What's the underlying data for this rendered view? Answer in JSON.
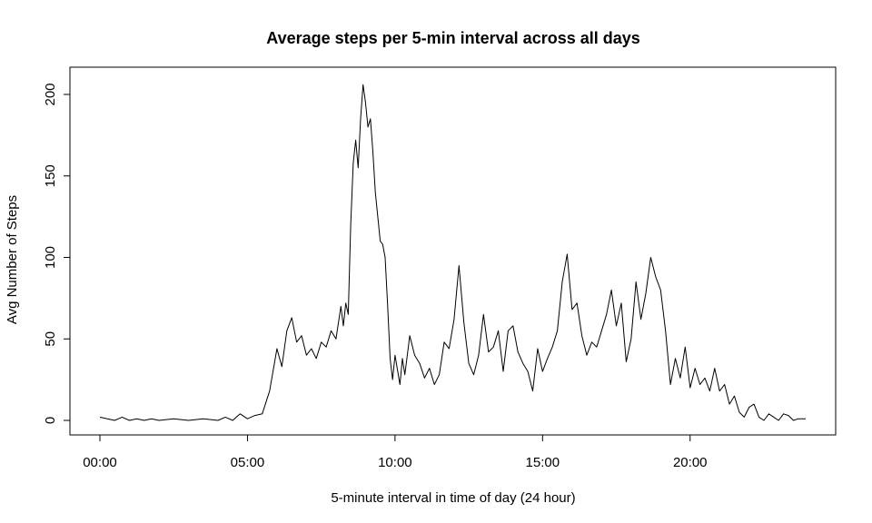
{
  "chart_data": {
    "type": "line",
    "title": "Average steps per 5-min interval across all days",
    "xlabel": "5-minute interval in time of day (24 hour)",
    "ylabel": "Avg Number of Steps",
    "x_unit": "time of day (HH:MM)",
    "xlim": [
      "00:00",
      "23:55"
    ],
    "ylim": [
      0,
      206
    ],
    "x_ticks": [
      "00:00",
      "05:00",
      "10:00",
      "15:00",
      "20:00"
    ],
    "y_ticks": [
      "0",
      "50",
      "100",
      "150",
      "200"
    ],
    "grid": false,
    "legend": "none",
    "series": [
      {
        "color": "#000000",
        "points": [
          [
            "00:00",
            2
          ],
          [
            "00:15",
            1
          ],
          [
            "00:30",
            0
          ],
          [
            "00:45",
            2
          ],
          [
            "01:00",
            0
          ],
          [
            "01:15",
            1
          ],
          [
            "01:30",
            0
          ],
          [
            "01:45",
            1
          ],
          [
            "02:00",
            0
          ],
          [
            "02:30",
            1
          ],
          [
            "03:00",
            0
          ],
          [
            "03:30",
            1
          ],
          [
            "04:00",
            0
          ],
          [
            "04:15",
            2
          ],
          [
            "04:30",
            0
          ],
          [
            "04:45",
            4
          ],
          [
            "05:00",
            1
          ],
          [
            "05:15",
            3
          ],
          [
            "05:30",
            4
          ],
          [
            "05:45",
            18
          ],
          [
            "06:00",
            44
          ],
          [
            "06:10",
            33
          ],
          [
            "06:20",
            55
          ],
          [
            "06:30",
            63
          ],
          [
            "06:40",
            48
          ],
          [
            "06:50",
            52
          ],
          [
            "07:00",
            40
          ],
          [
            "07:10",
            44
          ],
          [
            "07:20",
            38
          ],
          [
            "07:30",
            48
          ],
          [
            "07:40",
            45
          ],
          [
            "07:50",
            55
          ],
          [
            "08:00",
            50
          ],
          [
            "08:10",
            70
          ],
          [
            "08:15",
            58
          ],
          [
            "08:20",
            72
          ],
          [
            "08:25",
            65
          ],
          [
            "08:30",
            120
          ],
          [
            "08:35",
            158
          ],
          [
            "08:40",
            172
          ],
          [
            "08:45",
            155
          ],
          [
            "08:50",
            185
          ],
          [
            "08:55",
            206
          ],
          [
            "09:00",
            195
          ],
          [
            "09:05",
            180
          ],
          [
            "09:10",
            185
          ],
          [
            "09:15",
            165
          ],
          [
            "09:20",
            140
          ],
          [
            "09:25",
            125
          ],
          [
            "09:30",
            110
          ],
          [
            "09:35",
            108
          ],
          [
            "09:40",
            100
          ],
          [
            "09:45",
            70
          ],
          [
            "09:50",
            38
          ],
          [
            "09:55",
            25
          ],
          [
            "10:00",
            40
          ],
          [
            "10:10",
            22
          ],
          [
            "10:15",
            38
          ],
          [
            "10:20",
            28
          ],
          [
            "10:30",
            52
          ],
          [
            "10:40",
            40
          ],
          [
            "10:50",
            35
          ],
          [
            "11:00",
            26
          ],
          [
            "11:10",
            32
          ],
          [
            "11:20",
            22
          ],
          [
            "11:30",
            28
          ],
          [
            "11:40",
            48
          ],
          [
            "11:50",
            44
          ],
          [
            "12:00",
            62
          ],
          [
            "12:10",
            95
          ],
          [
            "12:20",
            60
          ],
          [
            "12:30",
            35
          ],
          [
            "12:40",
            28
          ],
          [
            "12:50",
            40
          ],
          [
            "13:00",
            65
          ],
          [
            "13:10",
            42
          ],
          [
            "13:20",
            45
          ],
          [
            "13:30",
            55
          ],
          [
            "13:40",
            30
          ],
          [
            "13:50",
            55
          ],
          [
            "14:00",
            58
          ],
          [
            "14:10",
            42
          ],
          [
            "14:20",
            35
          ],
          [
            "14:30",
            30
          ],
          [
            "14:40",
            18
          ],
          [
            "14:50",
            44
          ],
          [
            "15:00",
            30
          ],
          [
            "15:10",
            38
          ],
          [
            "15:20",
            45
          ],
          [
            "15:30",
            55
          ],
          [
            "15:40",
            85
          ],
          [
            "15:50",
            102
          ],
          [
            "16:00",
            68
          ],
          [
            "16:10",
            72
          ],
          [
            "16:20",
            52
          ],
          [
            "16:30",
            40
          ],
          [
            "16:40",
            48
          ],
          [
            "16:50",
            45
          ],
          [
            "17:00",
            55
          ],
          [
            "17:10",
            65
          ],
          [
            "17:20",
            80
          ],
          [
            "17:30",
            58
          ],
          [
            "17:40",
            72
          ],
          [
            "17:50",
            36
          ],
          [
            "18:00",
            50
          ],
          [
            "18:10",
            85
          ],
          [
            "18:20",
            62
          ],
          [
            "18:30",
            78
          ],
          [
            "18:40",
            100
          ],
          [
            "18:50",
            88
          ],
          [
            "19:00",
            80
          ],
          [
            "19:10",
            55
          ],
          [
            "19:20",
            22
          ],
          [
            "19:30",
            38
          ],
          [
            "19:40",
            26
          ],
          [
            "19:50",
            45
          ],
          [
            "20:00",
            20
          ],
          [
            "20:10",
            32
          ],
          [
            "20:20",
            22
          ],
          [
            "20:30",
            26
          ],
          [
            "20:40",
            18
          ],
          [
            "20:50",
            32
          ],
          [
            "21:00",
            18
          ],
          [
            "21:10",
            22
          ],
          [
            "21:20",
            10
          ],
          [
            "21:30",
            15
          ],
          [
            "21:40",
            5
          ],
          [
            "21:50",
            2
          ],
          [
            "22:00",
            8
          ],
          [
            "22:10",
            10
          ],
          [
            "22:20",
            2
          ],
          [
            "22:30",
            0
          ],
          [
            "22:40",
            4
          ],
          [
            "22:50",
            2
          ],
          [
            "23:00",
            0
          ],
          [
            "23:10",
            4
          ],
          [
            "23:20",
            3
          ],
          [
            "23:30",
            0
          ],
          [
            "23:40",
            1
          ],
          [
            "23:55",
            1
          ]
        ]
      }
    ]
  }
}
